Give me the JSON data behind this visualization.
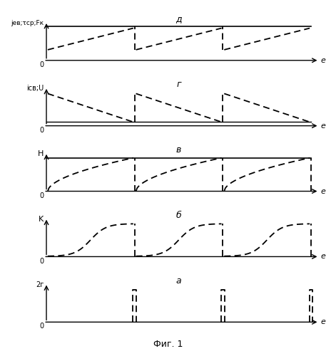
{
  "title": "Фиг. 1",
  "panel_labels": [
    "д",
    "г",
    "в",
    "б",
    "а"
  ],
  "ylabels": [
    "jев;τср;Fк",
    "iсв;U",
    "H",
    "K",
    "2г"
  ],
  "xlabel": "е",
  "period": 0.325,
  "n_periods": 3,
  "bg_color": "#ffffff"
}
